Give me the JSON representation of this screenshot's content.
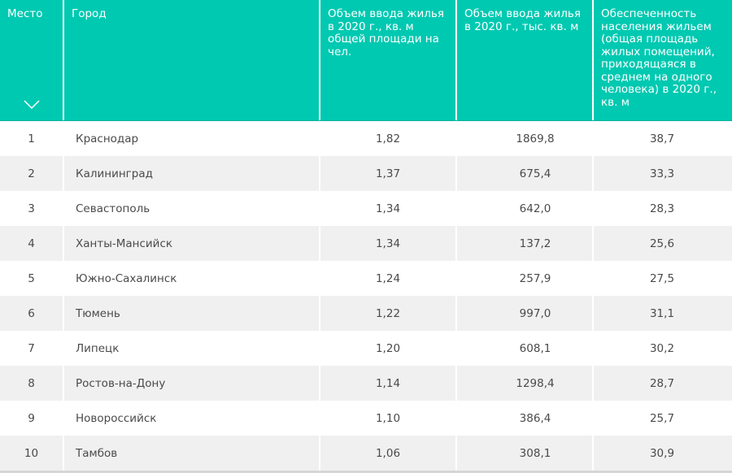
{
  "table": {
    "headers": [
      "Место",
      "Город",
      "Объем ввода жилья в 2020 г., кв. м общей площади на чел.",
      "Объем ввода жилья в 2020 г., тыс. кв. м",
      "Обеспеченность населения жильем (общая площадь жилых помещений, приходящаяся в среднем на одного человека) в 2020 г., кв. м"
    ],
    "sort_icon": "chevron-down-icon",
    "header_color": "#00c9b1",
    "rows": [
      {
        "rank": "1",
        "city": "Краснодар",
        "per_capita": "1,82",
        "volume": "1869,8",
        "supply": "38,7"
      },
      {
        "rank": "2",
        "city": "Калининград",
        "per_capita": "1,37",
        "volume": "675,4",
        "supply": "33,3"
      },
      {
        "rank": "3",
        "city": "Севастополь",
        "per_capita": "1,34",
        "volume": "642,0",
        "supply": "28,3"
      },
      {
        "rank": "4",
        "city": "Ханты-Мансийск",
        "per_capita": "1,34",
        "volume": "137,2",
        "supply": "25,6"
      },
      {
        "rank": "5",
        "city": "Южно-Сахалинск",
        "per_capita": "1,24",
        "volume": "257,9",
        "supply": "27,5"
      },
      {
        "rank": "6",
        "city": "Тюмень",
        "per_capita": "1,22",
        "volume": "997,0",
        "supply": "31,1"
      },
      {
        "rank": "7",
        "city": "Липецк",
        "per_capita": "1,20",
        "volume": "608,1",
        "supply": "30,2"
      },
      {
        "rank": "8",
        "city": "Ростов-на-Дону",
        "per_capita": "1,14",
        "volume": "1298,4",
        "supply": "28,7"
      },
      {
        "rank": "9",
        "city": "Новороссийск",
        "per_capita": "1,10",
        "volume": "386,4",
        "supply": "25,7"
      },
      {
        "rank": "10",
        "city": "Тамбов",
        "per_capita": "1,06",
        "volume": "308,1",
        "supply": "30,9"
      }
    ]
  }
}
